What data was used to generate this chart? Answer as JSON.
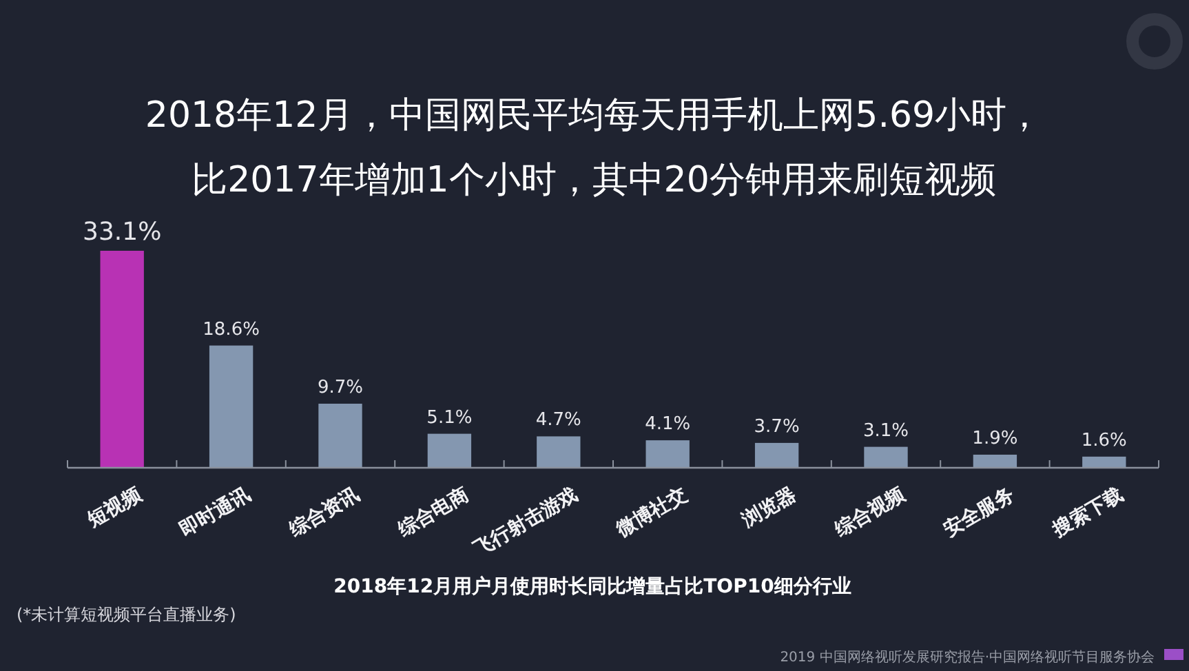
{
  "chart_data": {
    "type": "bar",
    "title": "2018年12月，中国网民平均每天用手机上网5.69小时，比2017年增加1个小时，其中20分钟用来刷短视频",
    "xlabel": "2018年12月用户月使用时长同比增量占比TOP10细分行业",
    "categories": [
      "短视频",
      "即时通讯",
      "综合资讯",
      "综合电商",
      "飞行射击游戏",
      "微博社交",
      "浏览器",
      "综合视频",
      "安全服务",
      "搜索下载"
    ],
    "values": [
      33.1,
      18.6,
      9.7,
      5.1,
      4.7,
      4.1,
      3.7,
      3.1,
      1.9,
      1.6
    ],
    "colors": [
      "#b832b4",
      "#8497b0",
      "#8497b0",
      "#8497b0",
      "#8497b0",
      "#8497b0",
      "#8497b0",
      "#8497b0",
      "#8497b0",
      "#8497b0"
    ],
    "value_labels": [
      "33.1%",
      "18.6%",
      "9.7%",
      "5.1%",
      "4.7%",
      "4.1%",
      "3.7%",
      "3.1%",
      "1.9%",
      "1.6%"
    ],
    "annotations": [
      "(*未计算短视频平台直播业务)",
      "2019 中国网络视听发展研究报告·中国网络视听节目服务协会"
    ]
  }
}
